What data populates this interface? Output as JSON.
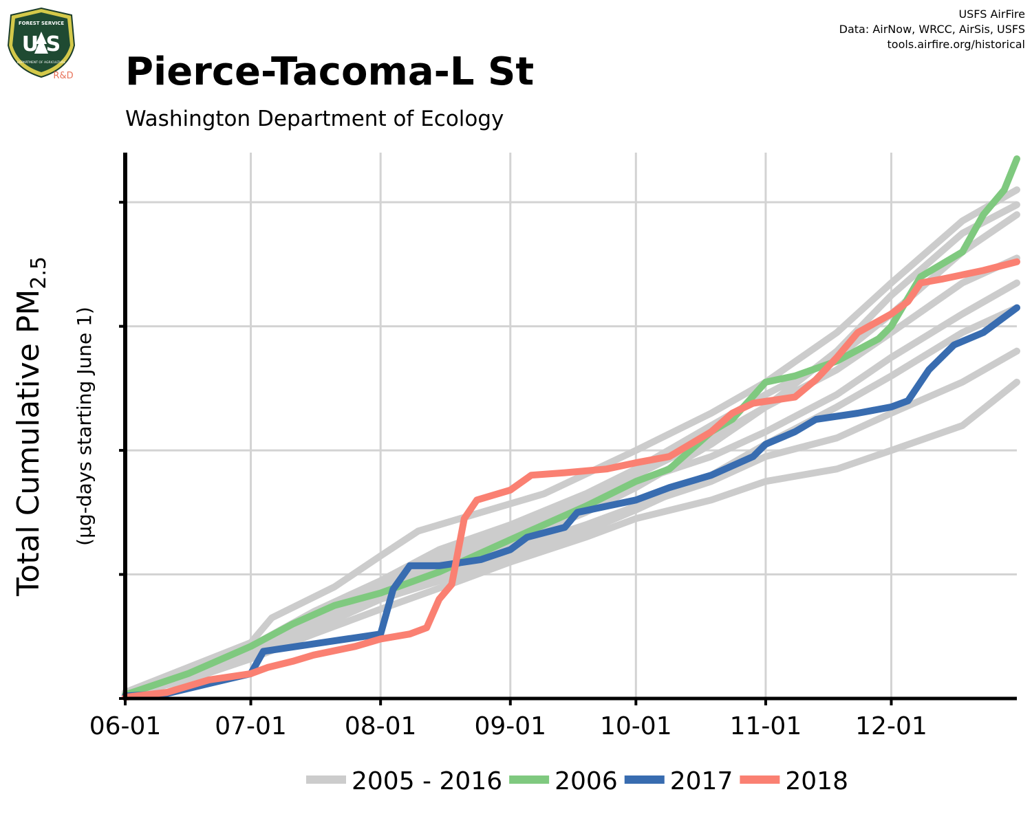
{
  "header": {
    "title": "Pierce-Tacoma-L St",
    "subtitle": "Washington Department of Ecology",
    "credits": [
      "USFS AirFire",
      "Data: AirNow, WRCC, AirSis, USFS",
      "tools.airfire.org/historical"
    ]
  },
  "logo": {
    "top_text": "FOREST SERVICE",
    "letters": "U S",
    "bottom_text": "DEPARTMENT OF AGRICULTURE",
    "badge": "R&D"
  },
  "chart_data": {
    "type": "line",
    "ylabel": "Total Cumulative PM",
    "ylabel_sub": "2.5",
    "ylabel2": "(µg-days starting June 1)",
    "x_ticks": [
      "06-01",
      "07-01",
      "08-01",
      "09-01",
      "10-01",
      "11-01",
      "12-01"
    ],
    "x_tick_days": [
      0,
      30,
      61,
      92,
      122,
      153,
      183
    ],
    "xlim": [
      0,
      213
    ],
    "ylim": [
      0,
      4.4
    ],
    "y_ticks": [
      1,
      2,
      3,
      4
    ],
    "y_tick_labels_visible": false,
    "grid": true,
    "legend": "bottom",
    "colors": {
      "history": "#cccccc",
      "s2006": "#7fc97f",
      "s2017": "#386cb0",
      "s2018": "#fa8072"
    },
    "series": [
      {
        "name": "2005 - 2016",
        "legend": true,
        "color": "#cccccc",
        "points": [
          [
            0,
            0.05
          ],
          [
            15,
            0.25
          ],
          [
            30,
            0.45
          ],
          [
            35,
            0.65
          ],
          [
            50,
            0.9
          ],
          [
            61,
            1.15
          ],
          [
            70,
            1.35
          ],
          [
            85,
            1.5
          ],
          [
            100,
            1.65
          ],
          [
            122,
            2.0
          ],
          [
            140,
            2.3
          ],
          [
            153,
            2.55
          ],
          [
            170,
            2.95
          ],
          [
            183,
            3.35
          ],
          [
            200,
            3.85
          ],
          [
            213,
            4.1
          ]
        ]
      },
      {
        "name": "",
        "legend": false,
        "color": "#cccccc",
        "points": [
          [
            0,
            0.05
          ],
          [
            15,
            0.2
          ],
          [
            30,
            0.4
          ],
          [
            45,
            0.65
          ],
          [
            61,
            0.9
          ],
          [
            75,
            1.1
          ],
          [
            92,
            1.3
          ],
          [
            110,
            1.55
          ],
          [
            122,
            1.75
          ],
          [
            140,
            1.95
          ],
          [
            153,
            2.15
          ],
          [
            170,
            2.45
          ],
          [
            183,
            2.75
          ],
          [
            200,
            3.1
          ],
          [
            213,
            3.35
          ]
        ]
      },
      {
        "name": "",
        "legend": false,
        "color": "#cccccc",
        "points": [
          [
            0,
            0.04
          ],
          [
            15,
            0.18
          ],
          [
            30,
            0.38
          ],
          [
            45,
            0.6
          ],
          [
            61,
            0.85
          ],
          [
            80,
            1.05
          ],
          [
            92,
            1.2
          ],
          [
            110,
            1.4
          ],
          [
            122,
            1.55
          ],
          [
            140,
            1.75
          ],
          [
            153,
            1.95
          ],
          [
            170,
            2.1
          ],
          [
            183,
            2.3
          ],
          [
            200,
            2.55
          ],
          [
            213,
            2.8
          ]
        ]
      },
      {
        "name": "",
        "legend": false,
        "color": "#cccccc",
        "points": [
          [
            0,
            0.03
          ],
          [
            15,
            0.15
          ],
          [
            30,
            0.32
          ],
          [
            45,
            0.52
          ],
          [
            61,
            0.72
          ],
          [
            80,
            0.95
          ],
          [
            92,
            1.1
          ],
          [
            110,
            1.3
          ],
          [
            122,
            1.45
          ],
          [
            140,
            1.6
          ],
          [
            153,
            1.75
          ],
          [
            170,
            1.85
          ],
          [
            183,
            2.0
          ],
          [
            200,
            2.2
          ],
          [
            213,
            2.55
          ]
        ]
      },
      {
        "name": "",
        "legend": false,
        "color": "#cccccc",
        "points": [
          [
            0,
            0.05
          ],
          [
            15,
            0.22
          ],
          [
            30,
            0.42
          ],
          [
            45,
            0.7
          ],
          [
            61,
            0.95
          ],
          [
            75,
            1.2
          ],
          [
            92,
            1.4
          ],
          [
            110,
            1.65
          ],
          [
            122,
            1.85
          ],
          [
            140,
            2.2
          ],
          [
            153,
            2.45
          ],
          [
            170,
            2.75
          ],
          [
            183,
            3.1
          ],
          [
            200,
            3.6
          ],
          [
            213,
            3.9
          ]
        ]
      },
      {
        "name": "",
        "legend": false,
        "color": "#cccccc",
        "points": [
          [
            0,
            0.04
          ],
          [
            15,
            0.2
          ],
          [
            30,
            0.38
          ],
          [
            45,
            0.62
          ],
          [
            61,
            0.88
          ],
          [
            75,
            1.08
          ],
          [
            92,
            1.25
          ],
          [
            110,
            1.5
          ],
          [
            122,
            1.7
          ],
          [
            140,
            2.05
          ],
          [
            153,
            2.35
          ],
          [
            170,
            2.65
          ],
          [
            183,
            2.95
          ],
          [
            200,
            3.35
          ],
          [
            213,
            3.55
          ]
        ]
      },
      {
        "name": "",
        "legend": false,
        "color": "#cccccc",
        "points": [
          [
            0,
            0.03
          ],
          [
            15,
            0.16
          ],
          [
            30,
            0.36
          ],
          [
            45,
            0.56
          ],
          [
            61,
            0.8
          ],
          [
            80,
            1.0
          ],
          [
            92,
            1.15
          ],
          [
            110,
            1.35
          ],
          [
            122,
            1.52
          ],
          [
            140,
            1.8
          ],
          [
            153,
            2.05
          ],
          [
            170,
            2.35
          ],
          [
            183,
            2.6
          ],
          [
            200,
            2.95
          ],
          [
            213,
            3.15
          ]
        ]
      },
      {
        "name": "",
        "legend": false,
        "color": "#cccccc",
        "points": [
          [
            0,
            0.04
          ],
          [
            15,
            0.18
          ],
          [
            30,
            0.4
          ],
          [
            45,
            0.63
          ],
          [
            61,
            0.9
          ],
          [
            75,
            1.15
          ],
          [
            92,
            1.35
          ],
          [
            110,
            1.6
          ],
          [
            122,
            1.8
          ],
          [
            140,
            2.1
          ],
          [
            153,
            2.35
          ],
          [
            170,
            2.8
          ],
          [
            183,
            3.25
          ],
          [
            200,
            3.75
          ],
          [
            213,
            3.98
          ]
        ]
      },
      {
        "name": "2006",
        "legend": true,
        "color": "#7fc97f",
        "points": [
          [
            0,
            0.03
          ],
          [
            15,
            0.2
          ],
          [
            30,
            0.42
          ],
          [
            40,
            0.6
          ],
          [
            50,
            0.75
          ],
          [
            61,
            0.85
          ],
          [
            75,
            1.02
          ],
          [
            92,
            1.28
          ],
          [
            110,
            1.55
          ],
          [
            122,
            1.75
          ],
          [
            130,
            1.85
          ],
          [
            140,
            2.15
          ],
          [
            145,
            2.25
          ],
          [
            153,
            2.55
          ],
          [
            160,
            2.6
          ],
          [
            170,
            2.72
          ],
          [
            180,
            2.9
          ],
          [
            183,
            3.0
          ],
          [
            190,
            3.4
          ],
          [
            200,
            3.6
          ],
          [
            205,
            3.9
          ],
          [
            210,
            4.1
          ],
          [
            213,
            4.35
          ]
        ]
      },
      {
        "name": "2017",
        "legend": true,
        "color": "#386cb0",
        "points": [
          [
            0,
            0.02
          ],
          [
            10,
            0.04
          ],
          [
            20,
            0.12
          ],
          [
            30,
            0.2
          ],
          [
            33,
            0.38
          ],
          [
            45,
            0.44
          ],
          [
            61,
            0.52
          ],
          [
            64,
            0.88
          ],
          [
            68,
            1.07
          ],
          [
            75,
            1.07
          ],
          [
            85,
            1.12
          ],
          [
            92,
            1.2
          ],
          [
            96,
            1.3
          ],
          [
            105,
            1.38
          ],
          [
            108,
            1.5
          ],
          [
            122,
            1.6
          ],
          [
            130,
            1.7
          ],
          [
            140,
            1.8
          ],
          [
            150,
            1.95
          ],
          [
            153,
            2.05
          ],
          [
            160,
            2.15
          ],
          [
            165,
            2.25
          ],
          [
            175,
            2.3
          ],
          [
            183,
            2.35
          ],
          [
            187,
            2.4
          ],
          [
            192,
            2.65
          ],
          [
            198,
            2.85
          ],
          [
            205,
            2.95
          ],
          [
            213,
            3.15
          ]
        ]
      },
      {
        "name": "2018",
        "legend": true,
        "color": "#fa8072",
        "points": [
          [
            0,
            0.01
          ],
          [
            10,
            0.05
          ],
          [
            20,
            0.15
          ],
          [
            30,
            0.2
          ],
          [
            34,
            0.25
          ],
          [
            40,
            0.3
          ],
          [
            45,
            0.35
          ],
          [
            55,
            0.42
          ],
          [
            61,
            0.48
          ],
          [
            68,
            0.52
          ],
          [
            72,
            0.57
          ],
          [
            75,
            0.8
          ],
          [
            78,
            0.92
          ],
          [
            81,
            1.45
          ],
          [
            84,
            1.6
          ],
          [
            92,
            1.68
          ],
          [
            97,
            1.8
          ],
          [
            105,
            1.82
          ],
          [
            115,
            1.85
          ],
          [
            122,
            1.9
          ],
          [
            130,
            1.95
          ],
          [
            140,
            2.15
          ],
          [
            145,
            2.3
          ],
          [
            150,
            2.38
          ],
          [
            160,
            2.43
          ],
          [
            165,
            2.57
          ],
          [
            170,
            2.75
          ],
          [
            175,
            2.95
          ],
          [
            183,
            3.1
          ],
          [
            187,
            3.2
          ],
          [
            190,
            3.35
          ],
          [
            195,
            3.38
          ],
          [
            205,
            3.45
          ],
          [
            213,
            3.52
          ]
        ]
      }
    ]
  }
}
